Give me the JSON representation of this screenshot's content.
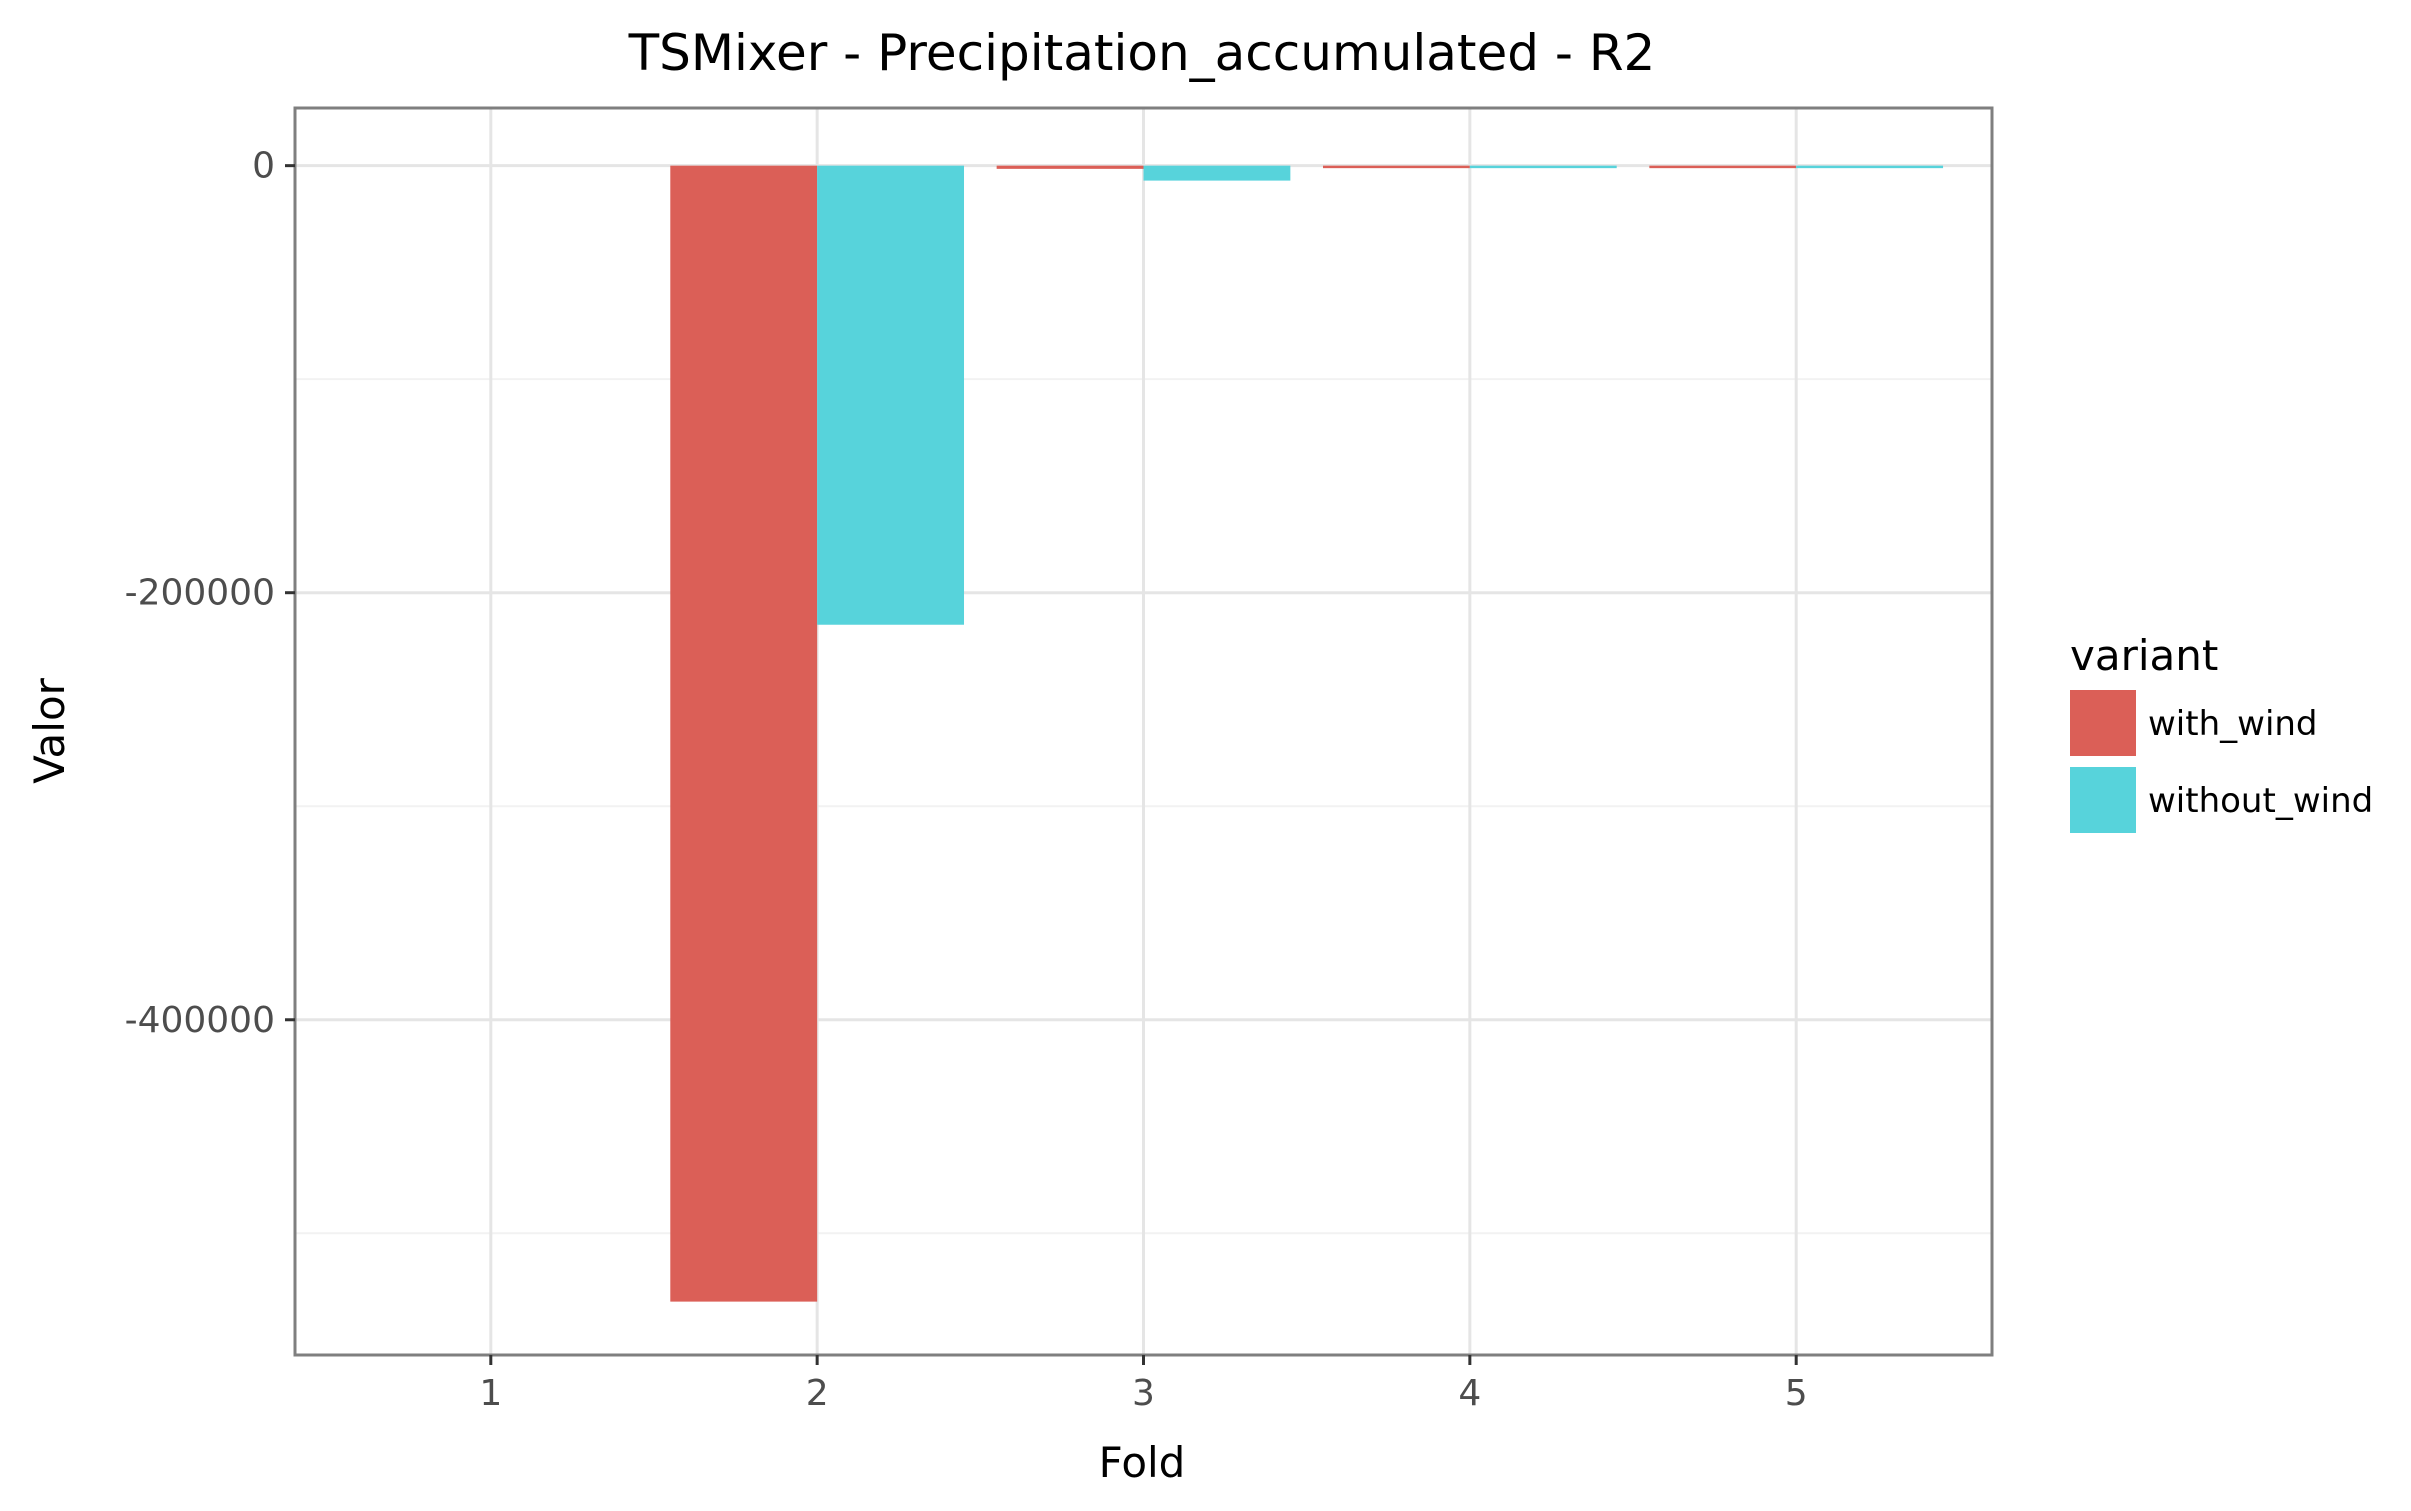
{
  "chart_data": {
    "type": "bar",
    "title": "TSMixer - Precipitation_accumulated - R2",
    "xlabel": "Fold",
    "ylabel": "Valor",
    "categories": [
      "1",
      "2",
      "3",
      "4",
      "5"
    ],
    "series": [
      {
        "name": "with_wind",
        "color": "#db5f57",
        "values": [
          0,
          -532000,
          -1500,
          -300,
          -500
        ]
      },
      {
        "name": "without_wind",
        "color": "#57d3db",
        "values": [
          0,
          -215000,
          -7000,
          -200,
          -300
        ]
      }
    ],
    "y_ticks": [
      0,
      -200000,
      -400000
    ],
    "y_tick_labels": [
      "0",
      "-200000",
      "-400000"
    ],
    "ylim": [
      -557000,
      27000
    ],
    "grid": true,
    "legend": {
      "title": "variant",
      "position": "right"
    }
  }
}
